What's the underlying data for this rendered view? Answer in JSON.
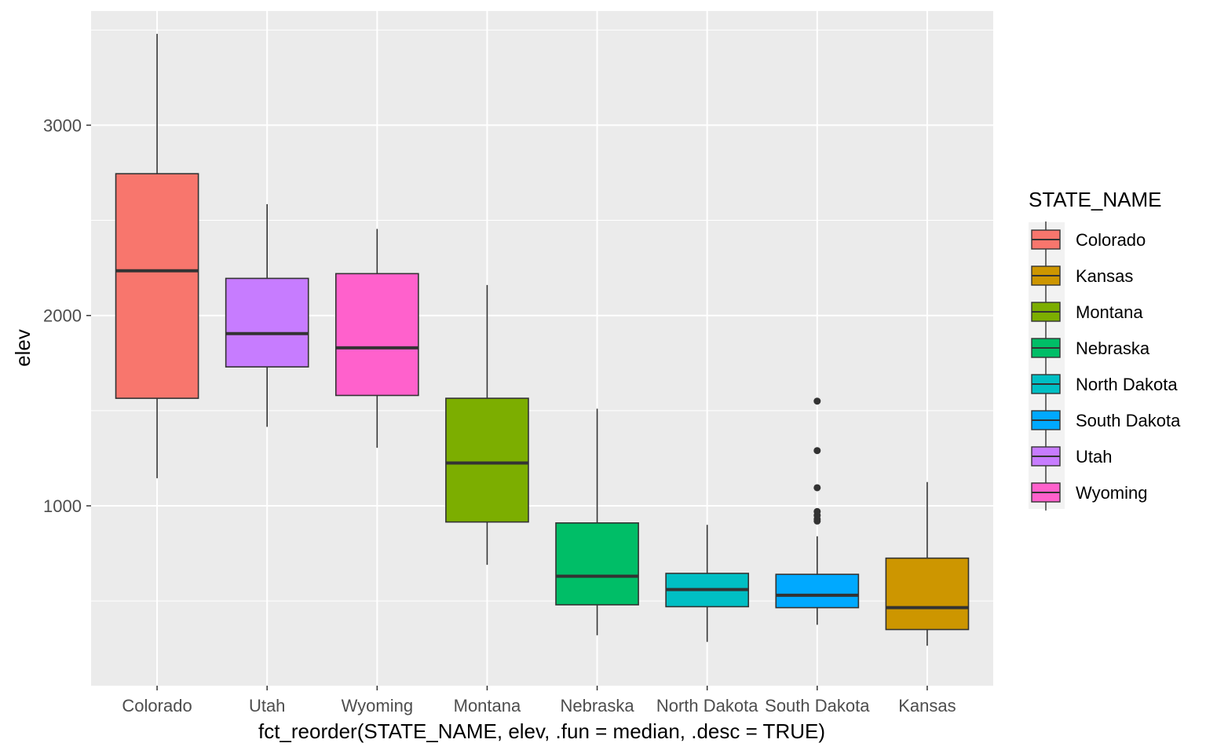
{
  "chart_data": {
    "type": "boxplot",
    "xlabel": "fct_reorder(STATE_NAME, elev, .fun = median, .desc = TRUE)",
    "ylabel": "elev",
    "ylim": [
      55,
      3600
    ],
    "yticks": [
      1000,
      2000,
      3000
    ],
    "grid": true,
    "legend": {
      "title": "STATE_NAME",
      "position": "right",
      "entries": [
        "Colorado",
        "Kansas",
        "Montana",
        "Nebraska",
        "North Dakota",
        "South Dakota",
        "Utah",
        "Wyoming"
      ]
    },
    "categories": [
      "Colorado",
      "Utah",
      "Wyoming",
      "Montana",
      "Nebraska",
      "North Dakota",
      "South Dakota",
      "Kansas"
    ],
    "boxes": [
      {
        "name": "Colorado",
        "color": "#F8766D",
        "whisker_low": 1145,
        "q1": 1565,
        "median": 2235,
        "q3": 2745,
        "whisker_high": 3480,
        "outliers": []
      },
      {
        "name": "Utah",
        "color": "#C77CFF",
        "whisker_low": 1415,
        "q1": 1730,
        "median": 1905,
        "q3": 2195,
        "whisker_high": 2585,
        "outliers": []
      },
      {
        "name": "Wyoming",
        "color": "#FF61CC",
        "whisker_low": 1305,
        "q1": 1580,
        "median": 1830,
        "q3": 2220,
        "whisker_high": 2455,
        "outliers": []
      },
      {
        "name": "Montana",
        "color": "#7CAE00",
        "whisker_low": 690,
        "q1": 915,
        "median": 1225,
        "q3": 1565,
        "whisker_high": 2160,
        "outliers": []
      },
      {
        "name": "Nebraska",
        "color": "#00BE67",
        "whisker_low": 320,
        "q1": 480,
        "median": 630,
        "q3": 910,
        "whisker_high": 1510,
        "outliers": []
      },
      {
        "name": "North Dakota",
        "color": "#00BFC4",
        "whisker_low": 285,
        "q1": 470,
        "median": 560,
        "q3": 645,
        "whisker_high": 900,
        "outliers": []
      },
      {
        "name": "South Dakota",
        "color": "#00A9FF",
        "whisker_low": 375,
        "q1": 465,
        "median": 530,
        "q3": 640,
        "whisker_high": 840,
        "outliers": [
          920,
          930,
          950,
          970,
          1095,
          1290,
          1550
        ]
      },
      {
        "name": "Kansas",
        "color": "#CD9600",
        "whisker_low": 265,
        "q1": 350,
        "median": 465,
        "q3": 725,
        "whisker_high": 1125,
        "outliers": []
      }
    ]
  }
}
